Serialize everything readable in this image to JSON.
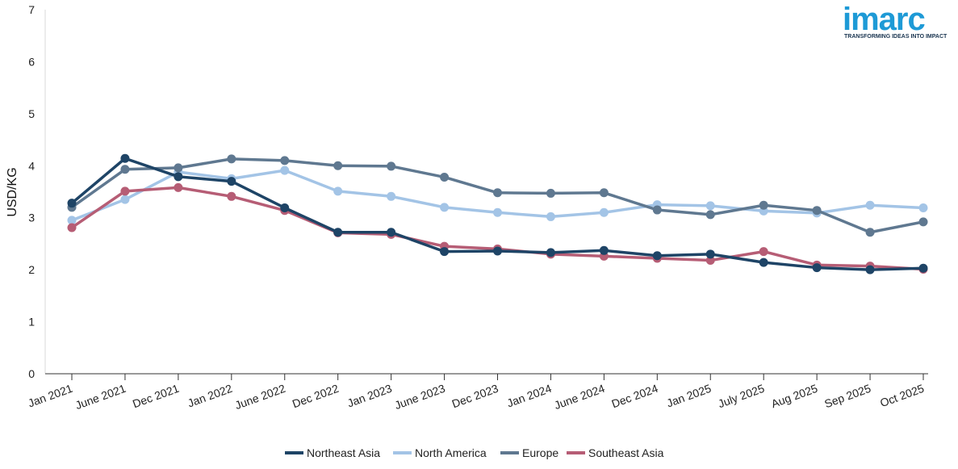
{
  "logo": {
    "word": "imarc",
    "tagline": "TRANSFORMING IDEAS INTO IMPACT"
  },
  "chart_data": {
    "type": "line",
    "title": "",
    "xlabel": "",
    "ylabel": "USD/KG",
    "ylim": [
      0,
      7
    ],
    "yticks": [
      0,
      1,
      2,
      3,
      4,
      5,
      6,
      7
    ],
    "grid": false,
    "legend_position": "bottom-center",
    "categories": [
      "Jan 2021",
      "June 2021",
      "Dec 2021",
      "Jan 2022",
      "June 2022",
      "Dec 2022",
      "Jan 2023",
      "June 2023",
      "Dec 2023",
      "Jan 2024",
      "June 2024",
      "Dec 2024",
      "Jan 2025",
      "July 2025",
      "Aug 2025",
      "Sep 2025",
      "Oct 2025"
    ],
    "series": [
      {
        "name": "North America",
        "color": "#a3c4e6",
        "values": [
          2.95,
          3.35,
          3.88,
          3.75,
          3.91,
          3.51,
          3.41,
          3.2,
          3.1,
          3.02,
          3.1,
          3.25,
          3.23,
          3.13,
          3.09,
          3.24,
          3.19
        ]
      },
      {
        "name": "Europe",
        "color": "#5f7890",
        "values": [
          3.2,
          3.93,
          3.96,
          4.13,
          4.1,
          4.0,
          3.99,
          3.78,
          3.48,
          3.47,
          3.48,
          3.15,
          3.06,
          3.24,
          3.14,
          2.72,
          2.92
        ]
      },
      {
        "name": "Southeast Asia",
        "color": "#b65d75",
        "values": [
          2.81,
          3.51,
          3.58,
          3.41,
          3.14,
          2.71,
          2.68,
          2.45,
          2.4,
          2.3,
          2.26,
          2.22,
          2.18,
          2.35,
          2.09,
          2.07,
          2.01
        ]
      },
      {
        "name": "Northeast Asia",
        "color": "#1e4466",
        "values": [
          3.28,
          4.14,
          3.79,
          3.7,
          3.19,
          2.72,
          2.72,
          2.35,
          2.36,
          2.33,
          2.37,
          2.27,
          2.3,
          2.14,
          2.04,
          2.0,
          2.03
        ]
      }
    ],
    "legend_order": [
      "Northeast Asia",
      "North America",
      "Europe",
      "Southeast Asia"
    ]
  }
}
